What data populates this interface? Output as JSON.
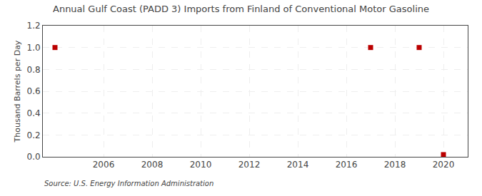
{
  "chart_data": {
    "type": "scatter",
    "title": "Annual Gulf Coast (PADD 3) Imports from Finland of Conventional Motor Gasoline",
    "ylabel": "Thousand Barrels per Day",
    "annotations": [
      "Source: U.S. Energy Information Administration"
    ],
    "x": [
      2004,
      2017,
      2019,
      2020
    ],
    "values": [
      1.0,
      1.0,
      1.0,
      0.02
    ],
    "color": "#bb0000",
    "marker": "square",
    "grid": true,
    "xlim": [
      2003.5,
      2021
    ],
    "ylim": [
      0.0,
      1.2
    ],
    "xticks": [
      2006,
      2008,
      2010,
      2012,
      2014,
      2016,
      2018,
      2020
    ],
    "yticks": [
      {
        "value": 0.0,
        "label": "0.0"
      },
      0.2,
      0.4,
      0.6,
      0.8,
      {
        "value": 1.0,
        "label": "1.0"
      },
      1.2
    ]
  }
}
